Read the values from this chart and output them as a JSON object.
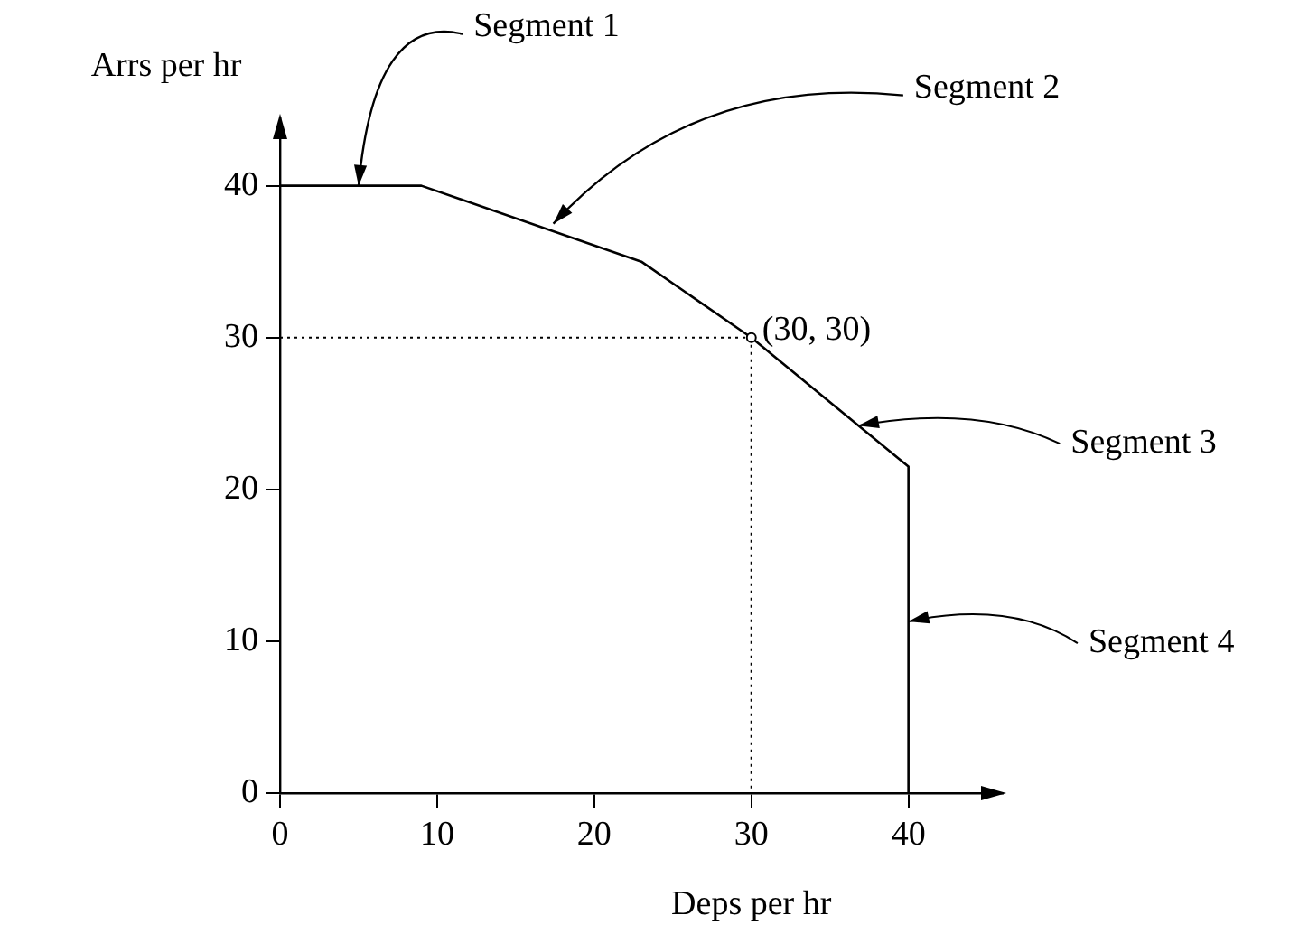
{
  "chart_data": {
    "type": "line",
    "xlabel": "Deps per hr",
    "ylabel": "Arrs per hr",
    "x": [
      0,
      9,
      23,
      30,
      40,
      40
    ],
    "series": [
      {
        "color": "#000000",
        "values": [
          40,
          40,
          35,
          30,
          21.5,
          0
        ]
      }
    ],
    "xlim": [
      0,
      46
    ],
    "ylim": [
      0,
      44.5
    ],
    "xticks": [
      0,
      10,
      20,
      30,
      40
    ],
    "yticks": [
      0,
      10,
      20,
      30,
      40
    ],
    "grid": false,
    "legend": false,
    "marker": "none",
    "line_style": "solid",
    "annotations": [
      {
        "text": "Segment 1",
        "x": 5,
        "y": 40
      },
      {
        "text": "Segment 2",
        "x": 17.4,
        "y": 37.5
      },
      {
        "text": "(30, 30)",
        "x": 30,
        "y": 30
      },
      {
        "text": "Segment 3",
        "x": 36.8,
        "y": 24.2
      },
      {
        "text": "Segment 4",
        "x": 40,
        "y": 11.3
      }
    ]
  }
}
